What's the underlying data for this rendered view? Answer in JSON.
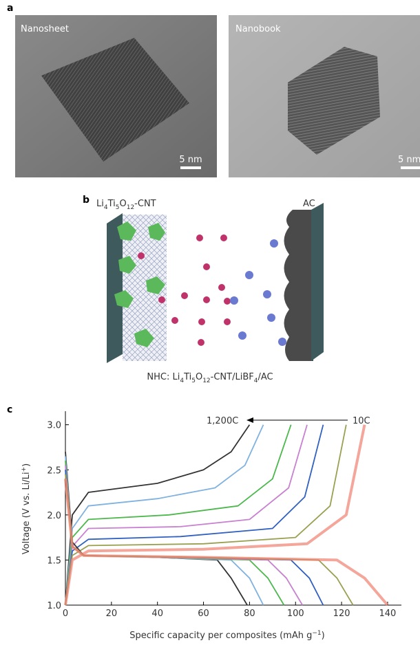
{
  "panels": {
    "a": {
      "label": "a",
      "images": [
        {
          "label": "Nanosheet",
          "scale": "5 nm"
        },
        {
          "label": "Nanobook",
          "scale": "5 nm"
        }
      ]
    },
    "b": {
      "label": "b",
      "anode": [
        "Li",
        "4",
        "Ti",
        "5",
        "O",
        "12",
        "-CNT"
      ],
      "cathode": "AC",
      "caption": [
        "NHC: Li",
        "4",
        "Ti",
        "5",
        "O",
        "12",
        "-CNT/LiBF",
        "4",
        "/AC"
      ]
    },
    "c": {
      "label": "c"
    }
  },
  "chart_data": {
    "type": "line",
    "x_label": [
      "Specific capacity per composites (mAh g",
      "−1",
      ")"
    ],
    "y_label": [
      "Voltage (V vs. Li/Li",
      "+",
      ")"
    ],
    "annotations": [
      "1,200C",
      "10C"
    ],
    "xlim": [
      0,
      146
    ],
    "ylim": [
      1.0,
      3.15
    ],
    "xticks": [
      0,
      20,
      40,
      60,
      80,
      100,
      120,
      140
    ],
    "yticks": [
      {
        "value": 1.0,
        "label": "1.0"
      },
      {
        "value": 1.5,
        "label": "1.5"
      },
      {
        "value": 2.0,
        "label": "2.0"
      },
      {
        "value": 2.5,
        "label": "2.5"
      },
      {
        "value": 3.0,
        "label": "3.0"
      }
    ],
    "series": [
      {
        "color": "#333333",
        "x": [
          0,
          3,
          10,
          40,
          60,
          72,
          80
        ],
        "values": [
          1.0,
          2.0,
          2.25,
          2.35,
          2.5,
          2.7,
          3.0
        ]
      },
      {
        "color": "#7fb2e0",
        "x": [
          0,
          3,
          10,
          40,
          65,
          78,
          86
        ],
        "values": [
          1.0,
          1.85,
          2.1,
          2.18,
          2.3,
          2.55,
          3.0
        ]
      },
      {
        "color": "#4cb84c",
        "x": [
          0,
          3,
          10,
          45,
          75,
          90,
          98
        ],
        "values": [
          1.0,
          1.75,
          1.95,
          2.0,
          2.1,
          2.4,
          3.0
        ]
      },
      {
        "color": "#c880d0",
        "x": [
          0,
          3,
          10,
          50,
          80,
          97,
          105
        ],
        "values": [
          1.0,
          1.65,
          1.85,
          1.87,
          1.95,
          2.3,
          3.0
        ]
      },
      {
        "color": "#3060c0",
        "x": [
          0,
          3,
          10,
          50,
          90,
          104,
          112
        ],
        "values": [
          1.0,
          1.6,
          1.73,
          1.76,
          1.85,
          2.2,
          3.0
        ]
      },
      {
        "color": "#9aa050",
        "x": [
          0,
          3,
          10,
          60,
          100,
          115,
          122
        ],
        "values": [
          1.0,
          1.55,
          1.66,
          1.68,
          1.75,
          2.1,
          3.0
        ]
      },
      {
        "color": "#f08070",
        "x": [
          0,
          3,
          10,
          60,
          105,
          122,
          130
        ],
        "values": [
          1.0,
          1.5,
          1.6,
          1.62,
          1.68,
          2.0,
          3.0
        ]
      },
      {
        "color": "#333333",
        "x": [
          0,
          3,
          8,
          40,
          66,
          72,
          79
        ],
        "values": [
          2.7,
          1.7,
          1.55,
          1.53,
          1.5,
          1.3,
          1.0
        ]
      },
      {
        "color": "#7fb2e0",
        "x": [
          0,
          3,
          8,
          40,
          72,
          80,
          86
        ],
        "values": [
          2.65,
          1.65,
          1.55,
          1.53,
          1.5,
          1.3,
          1.0
        ]
      },
      {
        "color": "#4cb84c",
        "x": [
          0,
          3,
          8,
          45,
          80,
          88,
          95
        ],
        "values": [
          2.6,
          1.65,
          1.55,
          1.53,
          1.5,
          1.3,
          1.0
        ]
      },
      {
        "color": "#c880d0",
        "x": [
          0,
          3,
          8,
          50,
          88,
          96,
          103
        ],
        "values": [
          2.55,
          1.65,
          1.55,
          1.53,
          1.5,
          1.3,
          1.0
        ]
      },
      {
        "color": "#3060c0",
        "x": [
          0,
          3,
          8,
          55,
          98,
          106,
          112
        ],
        "values": [
          2.5,
          1.65,
          1.55,
          1.53,
          1.5,
          1.3,
          1.0
        ]
      },
      {
        "color": "#9aa050",
        "x": [
          0,
          3,
          8,
          60,
          110,
          118,
          125
        ],
        "values": [
          2.45,
          1.65,
          1.55,
          1.53,
          1.5,
          1.3,
          1.0
        ]
      },
      {
        "color": "#f08070",
        "x": [
          0,
          3,
          8,
          60,
          118,
          130,
          140
        ],
        "values": [
          2.4,
          1.65,
          1.55,
          1.53,
          1.5,
          1.3,
          1.0
        ]
      }
    ]
  }
}
